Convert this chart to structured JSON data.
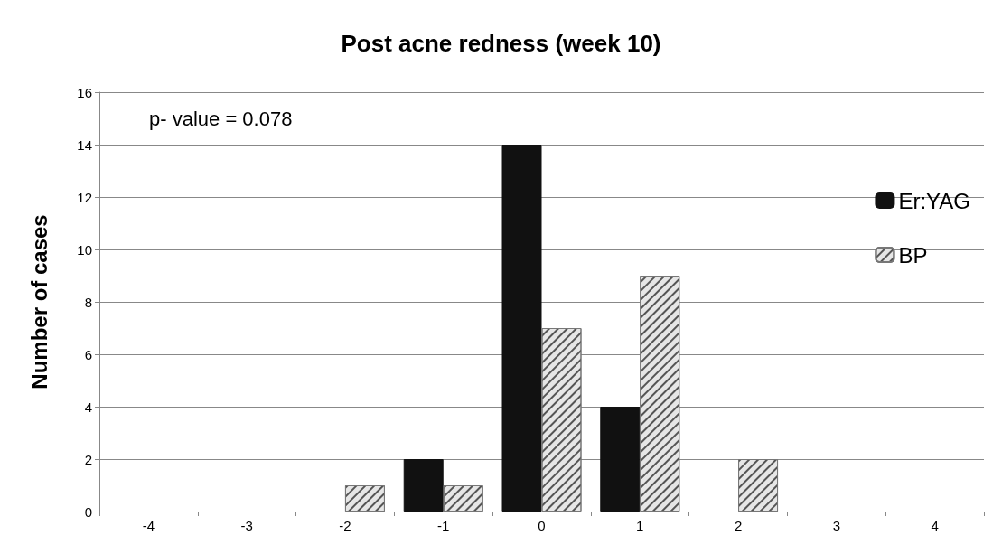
{
  "chart_data": {
    "type": "bar",
    "title": "Post acne redness (week 10)",
    "ylabel": "Number of cases",
    "categories": [
      "-4",
      "-3",
      "-2",
      "-1",
      "0",
      "1",
      "2",
      "3",
      "4"
    ],
    "series": [
      {
        "name": "Er:YAG",
        "color": "#111111",
        "values": [
          0,
          0,
          0,
          2,
          14,
          4,
          0,
          0,
          0
        ]
      },
      {
        "name": "BP",
        "color": "#e6e6e6",
        "values": [
          0,
          0,
          1,
          1,
          7,
          9,
          2,
          0,
          0
        ]
      }
    ],
    "ylim": [
      0,
      16
    ],
    "yticks": [
      0,
      2,
      4,
      6,
      8,
      10,
      12,
      14,
      16
    ],
    "grid": "y",
    "legend": "right",
    "annotations": [
      "p- value = 0.078"
    ]
  }
}
